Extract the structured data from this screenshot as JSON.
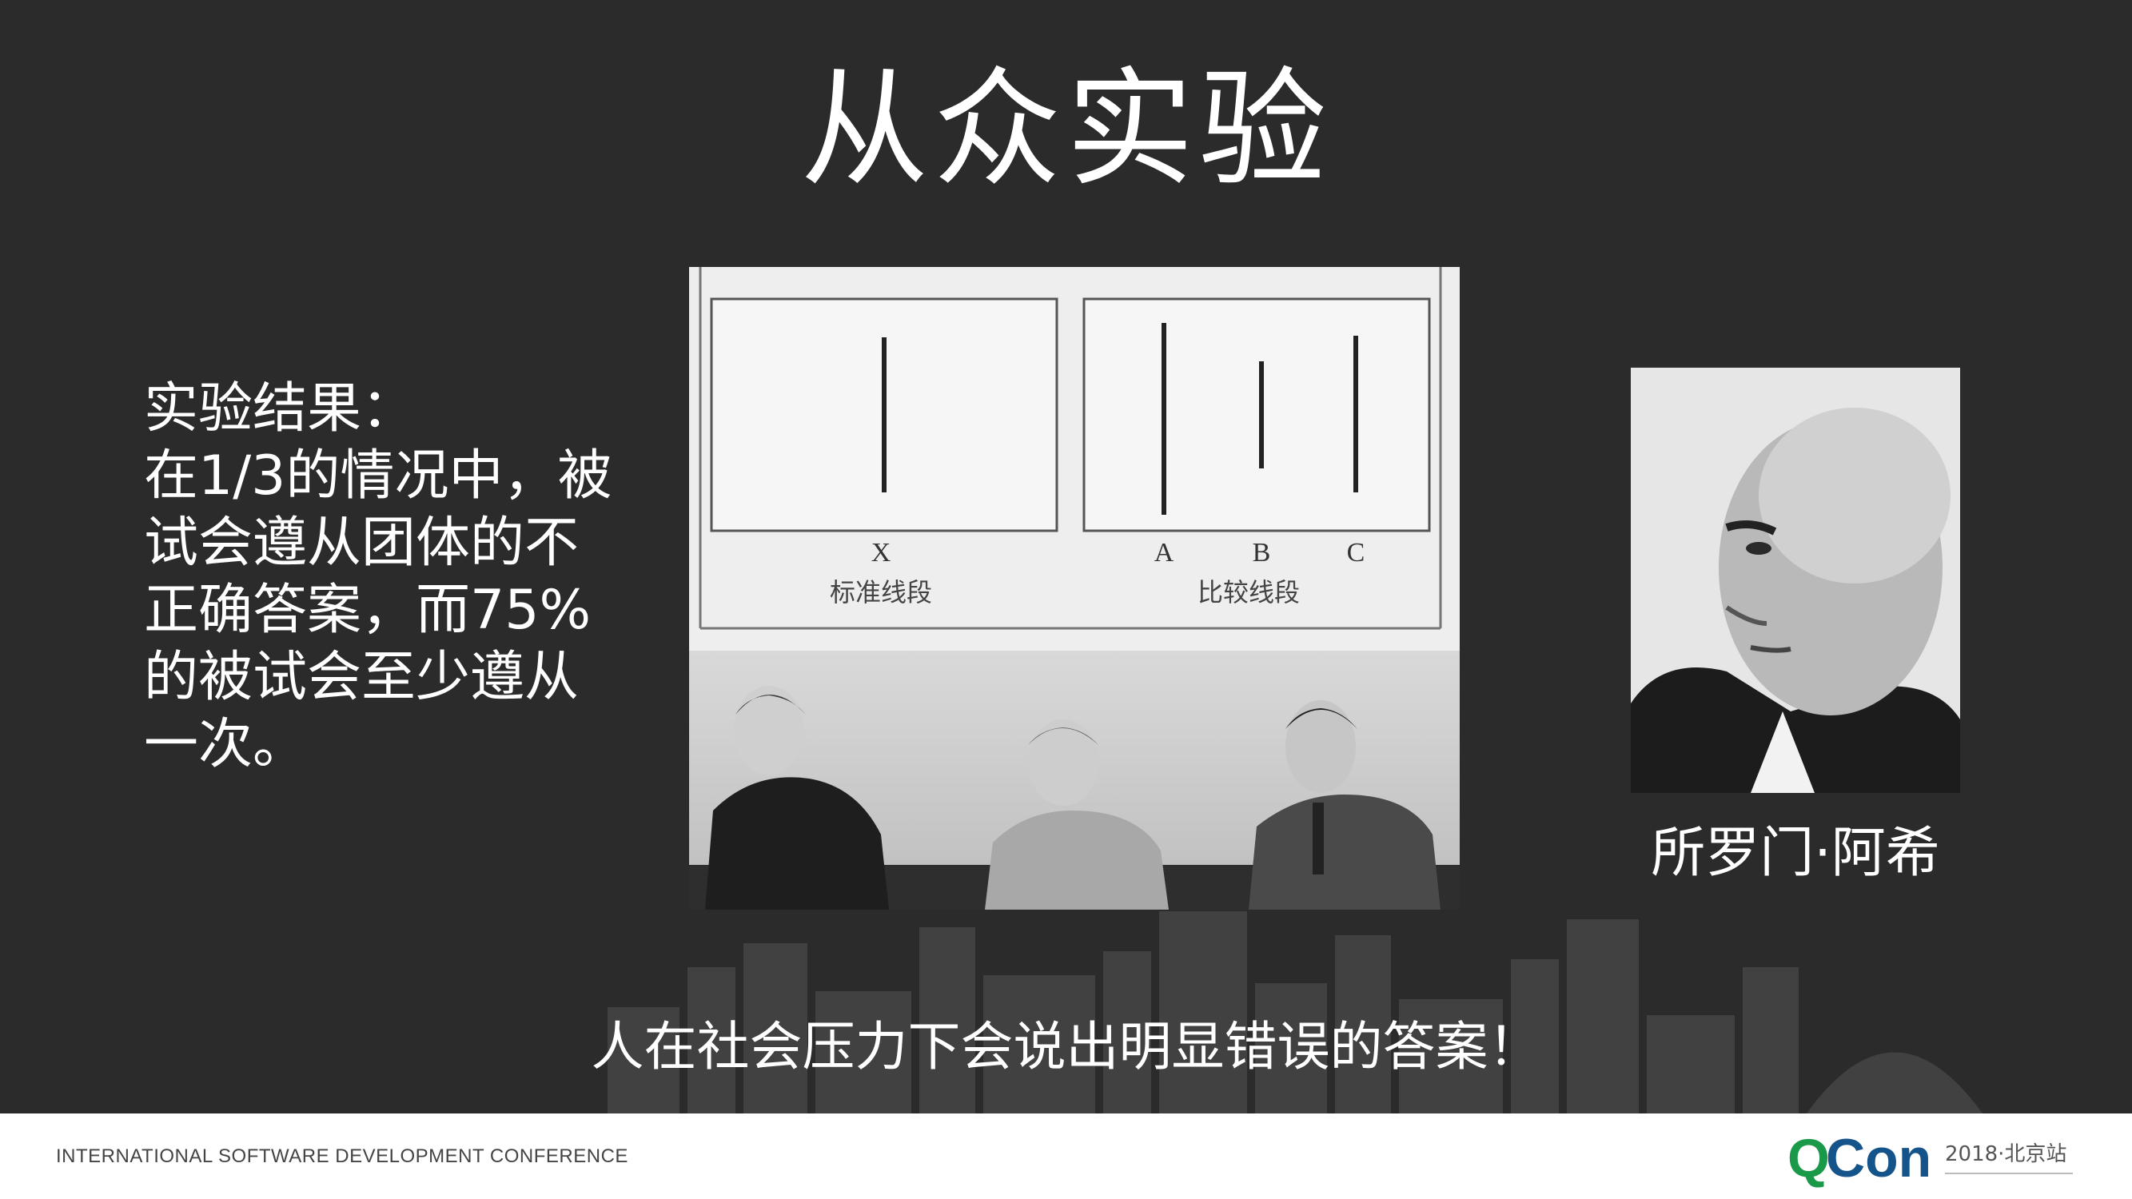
{
  "slide": {
    "title": "从众实验",
    "result_lines": [
      "实验结果：",
      "在1/3的情况中，被",
      "试会遵从团体的不",
      "正确答案，而75%",
      "的被试会至少遵从",
      "一次。"
    ],
    "diagram": {
      "standard_letter": "X",
      "standard_label": "标准线段",
      "comparison_letters": [
        "A",
        "B",
        "C"
      ],
      "comparison_label": "比较线段"
    },
    "portrait_caption": "所罗门·阿希",
    "bottom_text": "人在社会压力下会说出明显错误的答案！"
  },
  "footer": {
    "conference": "INTERNATIONAL SOFTWARE DEVELOPMENT CONFERENCE",
    "logo_q": "Q",
    "logo_con": "Con",
    "edition": "2018·北京站"
  },
  "colors": {
    "background": "#2b2b2b",
    "text": "#ffffff",
    "logo_green": "#1a9a48",
    "logo_blue": "#14548a"
  }
}
